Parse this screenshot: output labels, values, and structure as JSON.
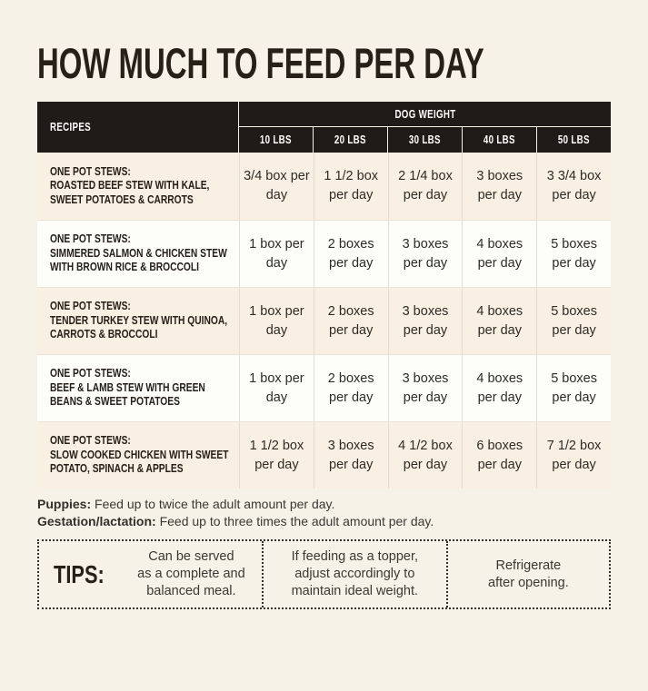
{
  "page": {
    "title": "HOW MUCH TO FEED PER DAY"
  },
  "table": {
    "recipes_header": "RECIPES",
    "dog_weight_header": "DOG WEIGHT",
    "weights": [
      "10 LBS",
      "20 LBS",
      "30 LBS",
      "40 LBS",
      "50 LBS"
    ],
    "rows": [
      {
        "lines": [
          "ONE POT STEWS:",
          "ROASTED BEEF STEW WITH KALE,",
          "SWEET POTATOES & CARROTS"
        ],
        "values": [
          "3/4 box per day",
          "1 1/2 box per day",
          "2 1/4 box per day",
          "3 boxes per day",
          "3 3/4 box per day"
        ]
      },
      {
        "lines": [
          "ONE POT STEWS:",
          "SIMMERED SALMON & CHICKEN STEW",
          "WITH BROWN RICE & BROCCOLI"
        ],
        "values": [
          "1 box per day",
          "2 boxes per day",
          "3 boxes per day",
          "4 boxes per day",
          "5 boxes per day"
        ]
      },
      {
        "lines": [
          "ONE POT STEWS:",
          "TENDER TURKEY STEW WITH QUINOA,",
          "CARROTS & BROCCOLI"
        ],
        "values": [
          "1 box per day",
          "2 boxes per day",
          "3 boxes per day",
          "4 boxes per day",
          "5 boxes per day"
        ]
      },
      {
        "lines": [
          "ONE POT STEWS:",
          "BEEF & LAMB STEW WITH GREEN",
          "BEANS & SWEET POTATOES"
        ],
        "values": [
          "1 box per day",
          "2 boxes per day",
          "3 boxes per day",
          "4 boxes per day",
          "5 boxes per day"
        ]
      },
      {
        "lines": [
          "ONE POT STEWS:",
          "SLOW COOKED CHICKEN WITH SWEET",
          "POTATO, SPINACH & APPLES"
        ],
        "values": [
          "1 1/2 box per day",
          "3 boxes per day",
          "4 1/2 box per day",
          "6 boxes per day",
          "7 1/2 box per day"
        ]
      }
    ]
  },
  "notes": [
    {
      "label": "Puppies:",
      "text": " Feed up to twice the adult amount per day."
    },
    {
      "label": "Gestation/lactation:",
      "text": " Feed up to three times the adult amount per day."
    }
  ],
  "tips": {
    "label": "TIPS:",
    "items": [
      [
        "Can be served",
        "as a complete and",
        "balanced meal."
      ],
      [
        "If feeding as a topper,",
        "adjust accordingly to",
        "maintain ideal weight."
      ],
      [
        "Refrigerate",
        "after opening."
      ]
    ]
  },
  "colors": {
    "background": "#f6f2e7",
    "header_bg": "#201b18",
    "header_text": "#ffffff",
    "row_odd_bg": "#f9efe3",
    "row_even_bg": "#fdfdfa",
    "text_dark": "#262019",
    "text_body": "#33302b"
  }
}
